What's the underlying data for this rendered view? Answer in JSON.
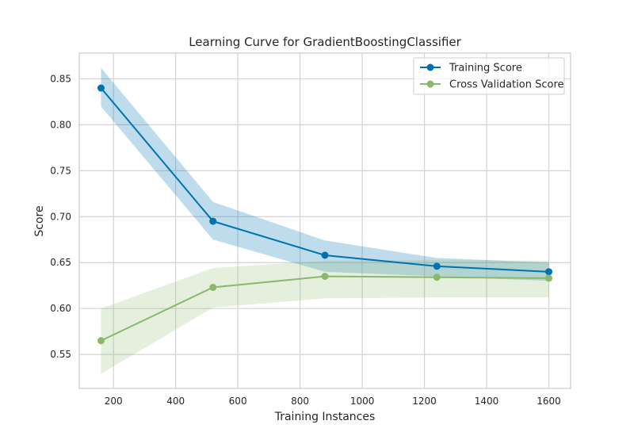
{
  "chart_data": {
    "type": "line",
    "title": "Learning Curve for GradientBoostingClassifier",
    "xlabel": "Training Instances",
    "ylabel": "Score",
    "xlim": [
      90,
      1670
    ],
    "ylim": [
      0.513,
      0.878
    ],
    "xticks": [
      200,
      400,
      600,
      800,
      1000,
      1200,
      1400,
      1600
    ],
    "yticks": [
      0.55,
      0.6,
      0.65,
      0.7,
      0.75,
      0.8,
      0.85
    ],
    "grid": true,
    "legend_position": "top-right",
    "x": [
      160,
      520,
      880,
      1240,
      1600
    ],
    "series": [
      {
        "name": "Training Score",
        "color": "#0072b2",
        "values": [
          0.84,
          0.695,
          0.658,
          0.646,
          0.64
        ],
        "band_upper": [
          0.862,
          0.716,
          0.674,
          0.655,
          0.65
        ],
        "band_lower": [
          0.82,
          0.675,
          0.64,
          0.635,
          0.63
        ]
      },
      {
        "name": "Cross Validation Score",
        "color": "#8ab86a",
        "values": [
          0.565,
          0.623,
          0.635,
          0.634,
          0.633
        ],
        "band_upper": [
          0.6,
          0.644,
          0.652,
          0.653,
          0.652
        ],
        "band_lower": [
          0.529,
          0.601,
          0.611,
          0.612,
          0.612
        ]
      }
    ]
  }
}
